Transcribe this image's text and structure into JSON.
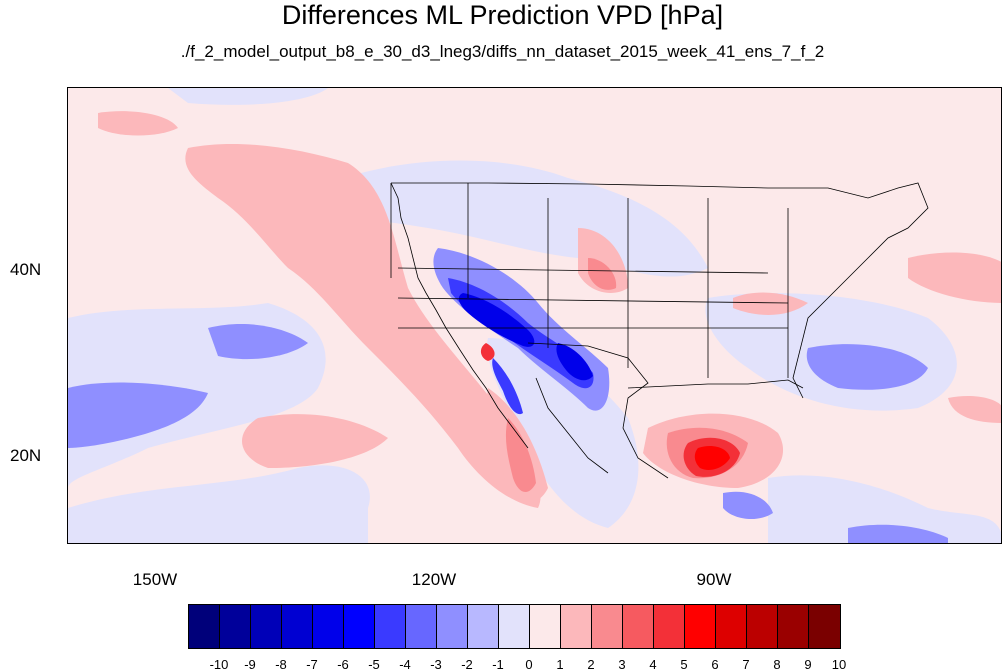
{
  "title": "Differences ML Prediction VPD [hPa]",
  "subtitle": "./f_2_model_output_b8_e_30_d3_lneg3/diffs_nn_dataset_2015_week_41_ens_7_f_2",
  "axes": {
    "lat_labels": [
      "40N",
      "20N"
    ],
    "lon_labels": [
      "150W",
      "120W",
      "90W"
    ]
  },
  "colorbar": {
    "labels": [
      "-10",
      "-9",
      "-8",
      "-7",
      "-6",
      "-5",
      "-4",
      "-3",
      "-2",
      "-1",
      "0",
      "1",
      "2",
      "3",
      "4",
      "5",
      "6",
      "7",
      "8",
      "9",
      "10"
    ],
    "colors": [
      "#00007a",
      "#00009a",
      "#0000b8",
      "#0000d2",
      "#0000ea",
      "#0000ff",
      "#3a3aff",
      "#6767ff",
      "#8f8fff",
      "#b8b8ff",
      "#e2e2fb",
      "#fce9ea",
      "#fcb8bb",
      "#f98a8f",
      "#f65a60",
      "#f33038",
      "#ff0000",
      "#dd0000",
      "#bb0000",
      "#9a0000",
      "#7a0000"
    ]
  },
  "map_colors": {
    "background": "#fce9ea",
    "coast": "#000000"
  }
}
